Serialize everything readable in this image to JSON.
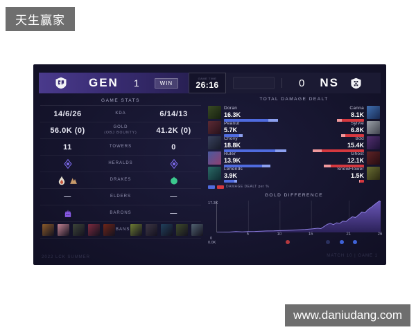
{
  "overlay": {
    "top_left_tag": "天生赢家",
    "watermark": "www.daniudang.com"
  },
  "header": {
    "left_team": {
      "name": "GEN",
      "score": "1",
      "logo": "geng-logo"
    },
    "win_label": "WIN",
    "timer": {
      "caption": "GAME TIME",
      "value": "26:16"
    },
    "right_team": {
      "name": "NS",
      "score": "0",
      "logo": "nongshim-logo"
    }
  },
  "stats": {
    "title": "GAME STATS",
    "rows": [
      {
        "label": "KDA",
        "left": {
          "text": "14/6/26"
        },
        "right": {
          "text": "6/14/13"
        }
      },
      {
        "label": "GOLD",
        "sublabel": "(OBJ BOUNTY)",
        "left": {
          "text": "56.0K (0)"
        },
        "right": {
          "text": "41.2K (0)"
        }
      },
      {
        "label": "TOWERS",
        "left": {
          "text": "11"
        },
        "right": {
          "text": "0"
        }
      },
      {
        "label": "HERALDS",
        "left": {
          "icons": [
            "herald"
          ]
        },
        "right": {
          "icons": [
            "herald"
          ]
        }
      },
      {
        "label": "DRAKES",
        "left": {
          "icons": [
            "infernal-drake",
            "mountain-drake"
          ]
        },
        "right": {
          "icons": [
            "ocean-drake"
          ]
        }
      },
      {
        "label": "ELDERS",
        "left": {
          "text": "—"
        },
        "right": {
          "text": "—"
        }
      },
      {
        "label": "BARONS",
        "left": {
          "icons": [
            "baron"
          ]
        },
        "right": {
          "text": "—"
        }
      },
      {
        "label": "BANS",
        "left": {
          "portraits": [
            "#8a5a2a",
            "#c08090",
            "#3c4438",
            "#7c2a3e",
            "#6e2518"
          ]
        },
        "right": {
          "portraits": [
            "#6d7c33",
            "#3c3544",
            "#20405c",
            "#3e4a2a",
            "#506170"
          ]
        }
      }
    ]
  },
  "damage": {
    "title": "TOTAL DAMAGE DEALT",
    "legend": "DAMAGE DEALT per %",
    "max_k": 20,
    "team_colors": {
      "blue": "#4f6bdf",
      "blue_tip": "#8ca0f0",
      "red": "#d5383f",
      "red_tip": "#f0989c"
    },
    "rows": [
      {
        "left": {
          "name": "Doran",
          "value": "16.3K",
          "k": 16.3,
          "portrait": [
            "#3a4a24",
            "#15200f"
          ]
        },
        "right": {
          "name": "Canna",
          "value": "8.1K",
          "k": 8.1,
          "portrait": [
            "#3f6fb0",
            "#182a52"
          ]
        }
      },
      {
        "left": {
          "name": "Peanut",
          "value": "5.7K",
          "k": 5.7,
          "portrait": [
            "#5c2a34",
            "#26111a"
          ]
        },
        "right": {
          "name": "Sylvie",
          "value": "6.8K",
          "k": 6.8,
          "portrait": [
            "#9aa0a8",
            "#41444e"
          ]
        }
      },
      {
        "left": {
          "name": "Chovy",
          "value": "18.8K",
          "k": 18.8,
          "portrait": [
            "#39415c",
            "#161a28"
          ]
        },
        "right": {
          "name": "Bdd",
          "value": "15.4K",
          "k": 15.4,
          "portrait": [
            "#533070",
            "#1d1236"
          ]
        }
      },
      {
        "left": {
          "name": "Ruler",
          "value": "13.9K",
          "k": 13.9,
          "portrait": [
            "#4a5aa0",
            "#8f4070"
          ]
        },
        "right": {
          "name": "Ghost",
          "value": "12.1K",
          "k": 12.1,
          "portrait": [
            "#5f2326",
            "#260d12"
          ]
        }
      },
      {
        "left": {
          "name": "Lehends",
          "value": "3.9K",
          "k": 3.9,
          "portrait": [
            "#2a6a66",
            "#0f2b31"
          ]
        },
        "right": {
          "name": "SnowFlower",
          "value": "1.5K",
          "k": 1.5,
          "portrait": [
            "#6a6f33",
            "#2c2a12"
          ]
        }
      }
    ]
  },
  "chart_data": {
    "type": "area",
    "title": "GOLD DIFFERENCE",
    "ylabel_top": "17.3K",
    "ylabel_zero": "0",
    "ylabel_bottom": "0.0K",
    "x_ticks": [
      5,
      10,
      15,
      21,
      26
    ],
    "x_range": [
      0,
      26
    ],
    "y_range": [
      0,
      17.5
    ],
    "area_color_top": "#6a57b8",
    "area_color_bottom": "#2b2158",
    "points": [
      [
        0,
        0
      ],
      [
        1,
        0.1
      ],
      [
        2,
        0.2
      ],
      [
        3,
        0.45
      ],
      [
        4,
        0.3
      ],
      [
        5,
        0.5
      ],
      [
        6,
        0.55
      ],
      [
        7,
        0.7
      ],
      [
        8,
        0.8
      ],
      [
        9,
        0.85
      ],
      [
        10,
        1.0
      ],
      [
        11,
        1.1
      ],
      [
        12,
        1.2
      ],
      [
        13,
        1.4
      ],
      [
        14,
        1.6
      ],
      [
        15,
        1.9
      ],
      [
        16,
        2.3
      ],
      [
        16.5,
        2.1
      ],
      [
        17,
        3.2
      ],
      [
        17.5,
        4.4
      ],
      [
        18,
        5.0
      ],
      [
        18.5,
        4.3
      ],
      [
        19,
        5.3
      ],
      [
        19.5,
        5.0
      ],
      [
        20,
        6.2
      ],
      [
        20.5,
        6.0
      ],
      [
        21,
        7.4
      ],
      [
        21.5,
        8.6
      ],
      [
        22,
        8.2
      ],
      [
        22.5,
        9.6
      ],
      [
        23,
        11.2
      ],
      [
        23.5,
        10.8
      ],
      [
        24,
        12.6
      ],
      [
        24.5,
        13.8
      ],
      [
        25,
        15.2
      ],
      [
        25.5,
        16.6
      ],
      [
        25.8,
        17.3
      ],
      [
        26,
        16.8
      ]
    ],
    "event_markers": [
      {
        "x": 11.4,
        "color": "#b5393f",
        "dim": false
      },
      {
        "x": 17.7,
        "color": "#47559f",
        "dim": true
      },
      {
        "x": 20.0,
        "color": "#3f63d8",
        "dim": false
      },
      {
        "x": 22.0,
        "color": "#3f63d8",
        "dim": false
      }
    ]
  },
  "footer": {
    "left": "2022 LCK SUMMER",
    "right": "MATCH 10 | GAME 1"
  }
}
